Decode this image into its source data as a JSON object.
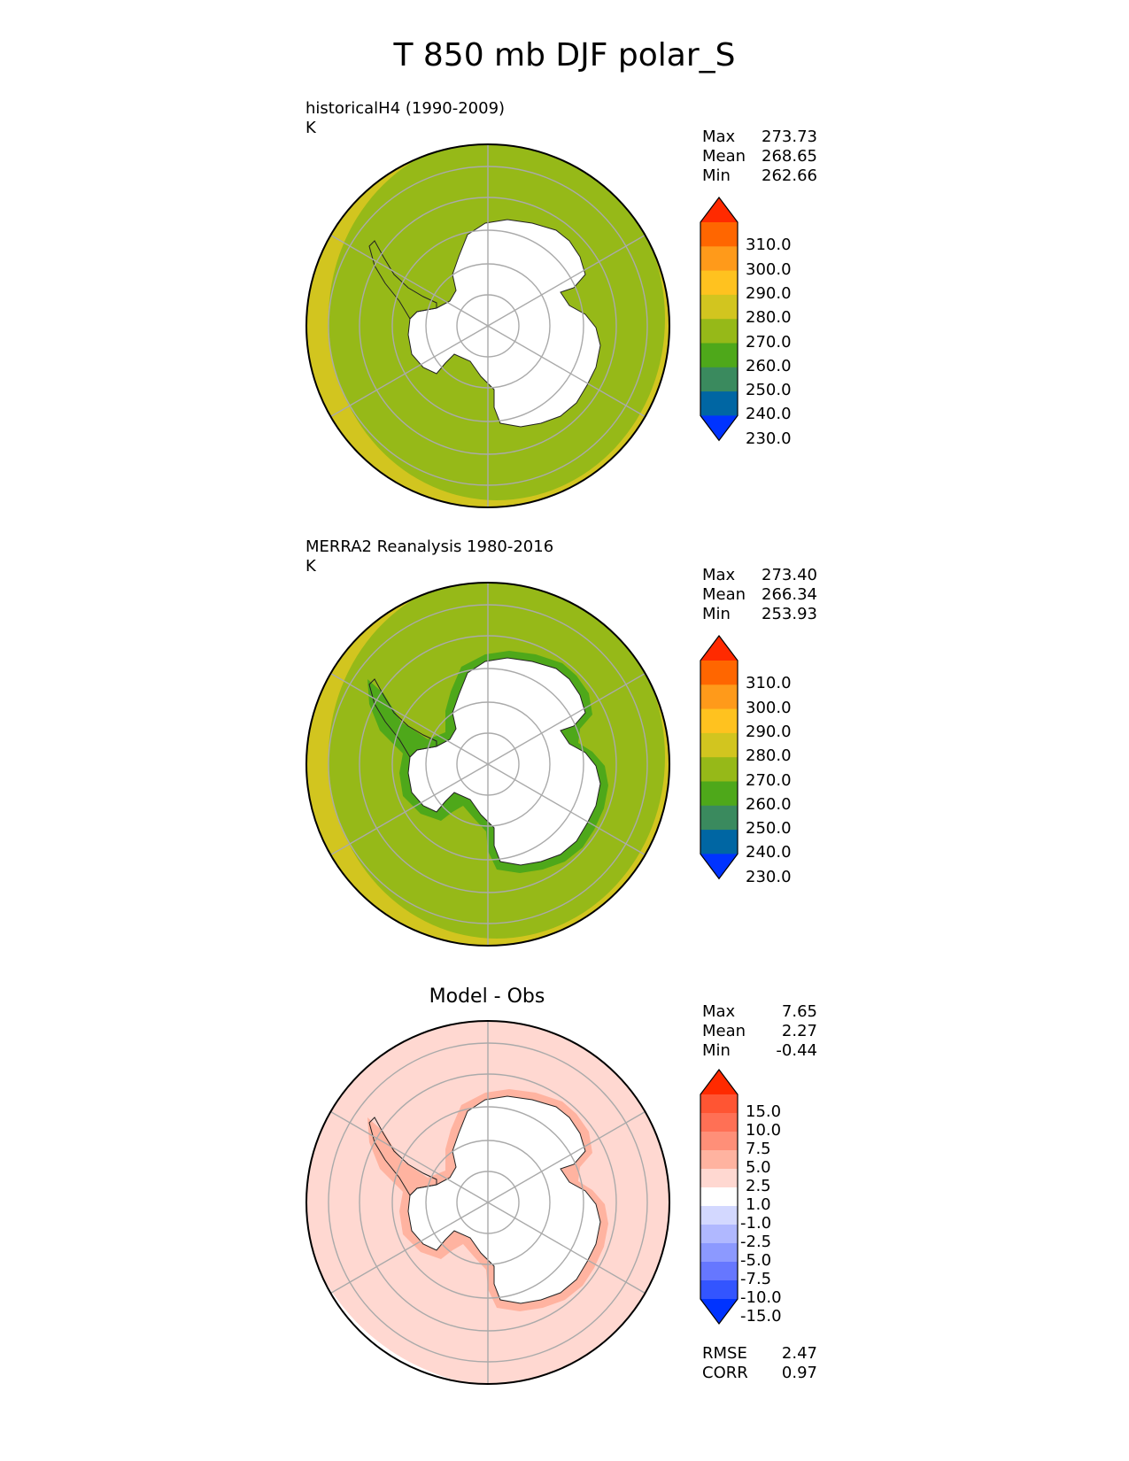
{
  "title": "T 850 mb DJF polar_S",
  "panels": [
    {
      "id": "model",
      "label_line1": "historicalH4 (1990-2009)",
      "label_line2": "K",
      "stats": [
        [
          "Max",
          "273.73"
        ],
        [
          "Mean",
          "268.65"
        ],
        [
          "Min",
          "262.66"
        ]
      ],
      "colorbar": {
        "ticks": [
          "310.0",
          "300.0",
          "290.0",
          "280.0",
          "270.0",
          "260.0",
          "250.0",
          "240.0",
          "230.0"
        ],
        "colors": [
          "#ff2a00",
          "#ff6600",
          "#ff9a1a",
          "#ffc21f",
          "#d2c51f",
          "#96b918",
          "#4ea81a",
          "#3a8a5e",
          "#0066a3",
          "#0033ff"
        ]
      },
      "map": {
        "outer": "#d2c51f",
        "ocean": "#96b918",
        "coast_band": null,
        "land": "#ffffff"
      }
    },
    {
      "id": "obs",
      "label_line1": "MERRA2 Reanalysis 1980-2016",
      "label_line2": "K",
      "stats": [
        [
          "Max",
          "273.40"
        ],
        [
          "Mean",
          "266.34"
        ],
        [
          "Min",
          "253.93"
        ]
      ],
      "colorbar": {
        "ticks": [
          "310.0",
          "300.0",
          "290.0",
          "280.0",
          "270.0",
          "260.0",
          "250.0",
          "240.0",
          "230.0"
        ],
        "colors": [
          "#ff2a00",
          "#ff6600",
          "#ff9a1a",
          "#ffc21f",
          "#d2c51f",
          "#96b918",
          "#4ea81a",
          "#3a8a5e",
          "#0066a3",
          "#0033ff"
        ]
      },
      "map": {
        "outer": "#d2c51f",
        "ocean": "#96b918",
        "coast_band": "#4ea81a",
        "land": "#ffffff"
      }
    },
    {
      "id": "diff",
      "title": "Model - Obs",
      "stats": [
        [
          "Max",
          "7.65"
        ],
        [
          "Mean",
          "2.27"
        ],
        [
          "Min",
          "-0.44"
        ]
      ],
      "extra_stats": [
        [
          "RMSE",
          "2.47"
        ],
        [
          "CORR",
          "0.97"
        ]
      ],
      "colorbar": {
        "ticks": [
          "15.0",
          "10.0",
          "7.5",
          "5.0",
          "2.5",
          "1.0",
          "-1.0",
          "-2.5",
          "-5.0",
          "-7.5",
          "-10.0",
          "-15.0"
        ],
        "colors": [
          "#ff2a00",
          "#ff5533",
          "#ff7055",
          "#ff8f78",
          "#ffb3a0",
          "#ffd8d1",
          "#ffffff",
          "#d3d8ff",
          "#b0b8ff",
          "#8c99ff",
          "#6677ff",
          "#3355ff",
          "#0033ff"
        ]
      },
      "map": {
        "outer": "#ffd8d1",
        "ocean": "#ffd8d1",
        "coast_band": "#ffb3a0",
        "land": "#ffffff"
      }
    }
  ]
}
